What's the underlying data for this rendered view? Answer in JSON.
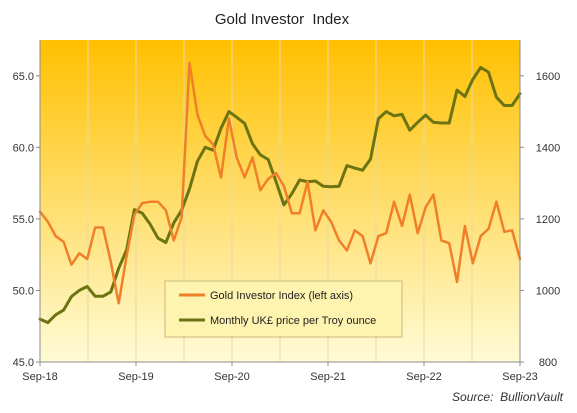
{
  "chart_data": {
    "type": "line",
    "title": "Gold Investor  Index",
    "source": "Source:  BullionVault",
    "x_tick_labels": [
      "Sep-18",
      "Sep-19",
      "Sep-20",
      "Sep-21",
      "Sep-22",
      "Sep-23"
    ],
    "x_range_months_from_start": [
      0,
      60
    ],
    "left_axis": {
      "ticks": [
        "45.0",
        "50.0",
        "55.0",
        "60.0",
        "65.0"
      ],
      "ylim": [
        45,
        67.5
      ]
    },
    "right_axis": {
      "ticks": [
        "800",
        "1000",
        "1200",
        "1400",
        "1600"
      ],
      "ylim": [
        800,
        1700
      ]
    },
    "legend": {
      "placement": "bottom-center"
    },
    "background": {
      "top": "#FFC000",
      "bottom": "#FFFBD6"
    },
    "series": [
      {
        "name": "Gold Investor Index (left axis)",
        "axis": "left",
        "color": "#F07F2A",
        "values": [
          55.5,
          54.8,
          53.8,
          53.4,
          51.8,
          52.6,
          52.2,
          54.4,
          54.4,
          52.0,
          49.1,
          52.4,
          55.3,
          56.1,
          56.2,
          56.2,
          55.6,
          53.5,
          55.1,
          65.9,
          62.3,
          60.8,
          60.2,
          57.9,
          62.0,
          59.3,
          57.9,
          59.3,
          57.0,
          57.8,
          58.2,
          57.3,
          55.4,
          55.4,
          57.6,
          54.2,
          55.6,
          54.8,
          53.5,
          52.8,
          54.2,
          53.8,
          51.9,
          53.8,
          54.0,
          56.2,
          54.5,
          56.7,
          54.0,
          55.8,
          56.7,
          53.5,
          53.3,
          50.6,
          54.5,
          51.9,
          53.8,
          54.3,
          56.2,
          54.1,
          54.2,
          52.2
        ]
      },
      {
        "name": "Monthly UK£ price per Troy ounce",
        "axis": "right",
        "color": "#6B7411",
        "values": [
          920,
          910,
          932,
          945,
          983,
          1000,
          1011,
          984,
          984,
          996,
          1062,
          1113,
          1226,
          1216,
          1185,
          1146,
          1134,
          1189,
          1224,
          1284,
          1361,
          1400,
          1392,
          1453,
          1500,
          1484,
          1467,
          1410,
          1379,
          1366,
          1304,
          1239,
          1270,
          1309,
          1304,
          1306,
          1291,
          1290,
          1291,
          1349,
          1342,
          1336,
          1367,
          1480,
          1500,
          1488,
          1492,
          1448,
          1470,
          1490,
          1470,
          1468,
          1468,
          1560,
          1542,
          1590,
          1623,
          1610,
          1540,
          1517,
          1517,
          1550
        ]
      }
    ]
  }
}
